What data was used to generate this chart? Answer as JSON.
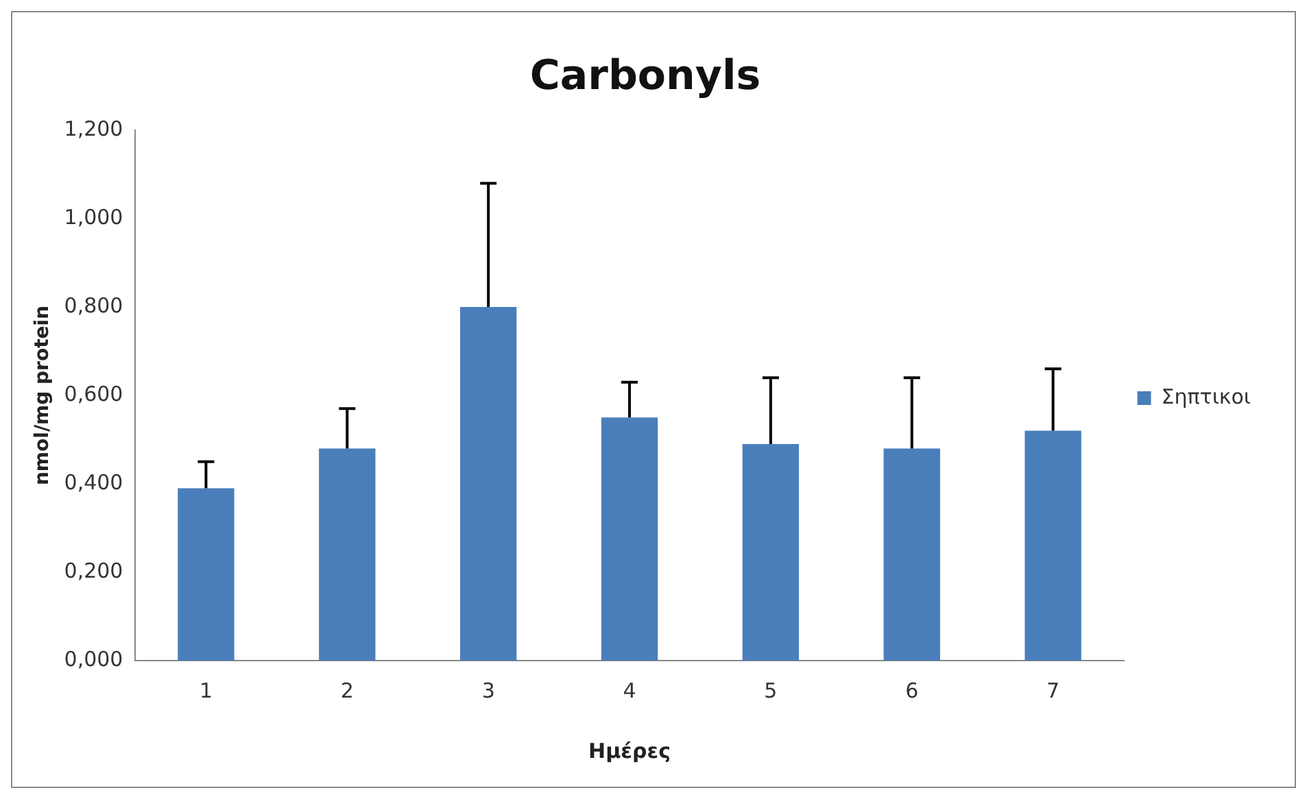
{
  "chart_data": {
    "type": "bar",
    "title": "Carbonyls",
    "xlabel": "Ημέρες",
    "ylabel": "nmol/mg protein",
    "categories": [
      "1",
      "2",
      "3",
      "4",
      "5",
      "6",
      "7"
    ],
    "series": [
      {
        "name": "Σηπτικοι",
        "color": "#4a7ebb",
        "values": [
          0.39,
          0.48,
          0.8,
          0.55,
          0.49,
          0.48,
          0.52
        ],
        "errors": [
          [
            0.39,
            0.45
          ],
          [
            0.48,
            0.57
          ],
          [
            0.8,
            1.08
          ],
          [
            0.55,
            0.63
          ],
          [
            0.49,
            0.64
          ],
          [
            0.48,
            0.64
          ],
          [
            0.52,
            0.66
          ]
        ]
      }
    ],
    "ylim": [
      0,
      1.2
    ],
    "yticks": [
      {
        "value": 0,
        "label": "0,000"
      },
      {
        "value": 0.2,
        "label": "0,200"
      },
      {
        "value": 0.4,
        "label": "0,400"
      },
      {
        "value": 0.6,
        "label": "0,600"
      },
      {
        "value": 0.8,
        "label": "0,800"
      },
      {
        "value": 1.0,
        "label": "1,000"
      },
      {
        "value": 1.2,
        "label": "1,200"
      }
    ],
    "grid": false,
    "legend": "right"
  }
}
